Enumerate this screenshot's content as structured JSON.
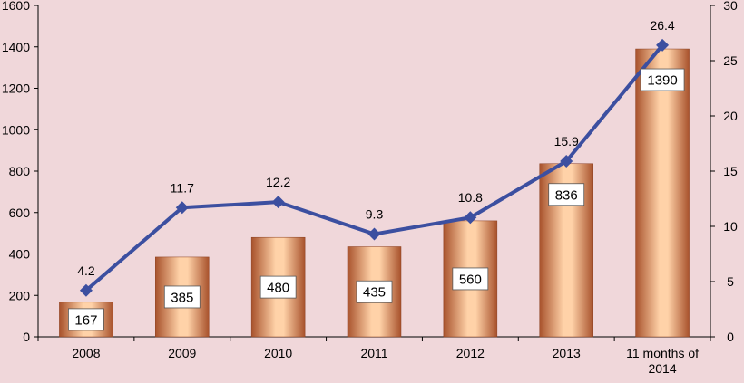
{
  "chart_data": {
    "type": "bar",
    "categories": [
      "2008",
      "2009",
      "2010",
      "2011",
      "2012",
      "2013",
      "11 months of 2014"
    ],
    "series": [
      {
        "values": [
          167,
          385,
          480,
          435,
          560,
          836,
          1390
        ],
        "axis": "left",
        "kind": "bar"
      },
      {
        "values": [
          4.2,
          11.7,
          12.2,
          9.3,
          10.8,
          15.9,
          26.4
        ],
        "axis": "right",
        "kind": "line"
      }
    ],
    "ylim_left": [
      0,
      1600
    ],
    "ylim_right": [
      0,
      30
    ],
    "left_ticks": [
      "0",
      "200",
      "400",
      "600",
      "800",
      "1000",
      "1200",
      "1400",
      "1600"
    ],
    "right_ticks": [
      "0",
      "5",
      "10",
      "15",
      "20",
      "25",
      "30"
    ],
    "title": "",
    "xlabel": "",
    "ylabel": "",
    "grid": false,
    "colors": {
      "background": "#f0d7da",
      "bar_light": "#ffd2a8",
      "bar_dark": "#a8522c",
      "line": "#3c4fa0",
      "axis": "#000000",
      "label_box": "#ffffff"
    }
  }
}
